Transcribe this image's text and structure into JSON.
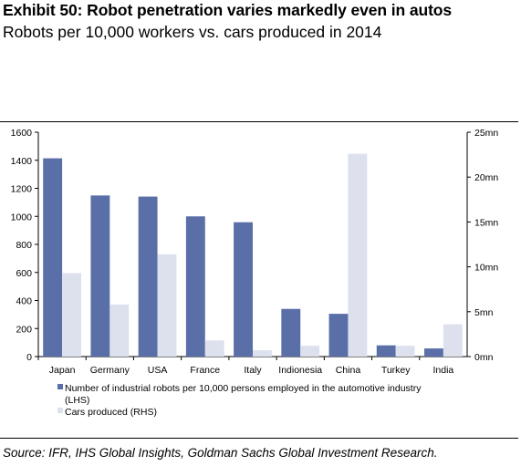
{
  "header": {
    "title": "Exhibit 50: Robot penetration varies markedly even in autos",
    "subtitle": "Robots per 10,000 workers vs. cars produced in 2014"
  },
  "footer": {
    "source": "Source: IFR, IHS Global Insights, Goldman Sachs Global Investment Research."
  },
  "chart_data": {
    "type": "bar",
    "categories": [
      "Japan",
      "Germany",
      "USA",
      "France",
      "Italy",
      "Indionesia",
      "China",
      "Turkey",
      "India"
    ],
    "series": [
      {
        "name": "Number of industrial robots per 10,000 persons employed in the automotive industry (LHS)",
        "axis": "left",
        "color": "#5a6fa8",
        "values": [
          1414,
          1149,
          1141,
          1000,
          958,
          340,
          305,
          80,
          58
        ]
      },
      {
        "name": "Cars produced (RHS)",
        "axis": "right",
        "color": "#dde1ee",
        "values": [
          9.3,
          5.8,
          11.4,
          1.8,
          0.7,
          1.2,
          22.6,
          1.2,
          3.6
        ]
      }
    ],
    "y_left": {
      "min": 0,
      "max": 1600,
      "ticks": [
        0,
        200,
        400,
        600,
        800,
        1000,
        1200,
        1400,
        1600
      ],
      "tick_labels": [
        "0",
        "200",
        "400",
        "600",
        "800",
        "1000",
        "1200",
        "1400",
        "1600"
      ]
    },
    "y_right": {
      "min": 0,
      "max": 25,
      "unit": "mn",
      "ticks": [
        0,
        5,
        10,
        15,
        20,
        25
      ],
      "tick_labels": [
        "0mn",
        "5mn",
        "10mn",
        "15mn",
        "20mn",
        "25mn"
      ]
    },
    "grid": false,
    "legend": {
      "position": "bottom-left",
      "entries": [
        {
          "label_line1": "Number of industrial robots per 10,000 persons employed in the automotive industry",
          "label_line2": "(LHS)"
        },
        {
          "label_line1": "Cars produced (RHS)"
        }
      ]
    }
  }
}
